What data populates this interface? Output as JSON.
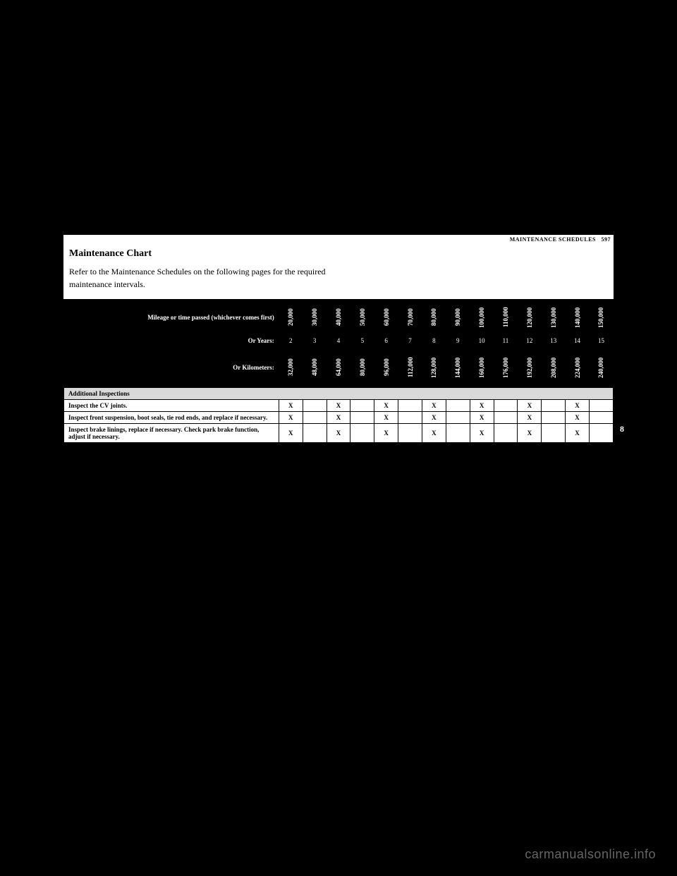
{
  "header": {
    "section": "MAINTENANCE SCHEDULES",
    "page_no": "597"
  },
  "title": "Maintenance Chart",
  "intro": "Refer to the Maintenance Schedules on the following pages for the required maintenance intervals.",
  "table": {
    "row_mileage_label": "Mileage or time passed (whichever comes first)",
    "miles": [
      "20,000",
      "30,000",
      "40,000",
      "50,000",
      "60,000",
      "70,000",
      "80,000",
      "90,000",
      "100,000",
      "110,000",
      "120,000",
      "130,000",
      "140,000",
      "150,000"
    ],
    "row_years_label": "Or Years:",
    "years": [
      "2",
      "3",
      "4",
      "5",
      "6",
      "7",
      "8",
      "9",
      "10",
      "11",
      "12",
      "13",
      "14",
      "15"
    ],
    "row_km_label": "Or Kilometers:",
    "km": [
      "32,000",
      "48,000",
      "64,000",
      "80,000",
      "96,000",
      "112,000",
      "128,000",
      "144,000",
      "160,000",
      "176,000",
      "192,000",
      "208,000",
      "224,000",
      "240,000"
    ],
    "section_label": "Additional Inspections",
    "rows": [
      {
        "label": "Inspect the CV joints.",
        "marks": [
          "X",
          "",
          "X",
          "",
          "X",
          "",
          "X",
          "",
          "X",
          "",
          "X",
          "",
          "X",
          ""
        ]
      },
      {
        "label": "Inspect front suspension, boot seals, tie rod ends, and replace if necessary.",
        "marks": [
          "X",
          "",
          "X",
          "",
          "X",
          "",
          "X",
          "",
          "X",
          "",
          "X",
          "",
          "X",
          ""
        ]
      },
      {
        "label": "Inspect brake linings, replace if necessary. Check park brake function, adjust if necessary.",
        "marks": [
          "X",
          "",
          "X",
          "",
          "X",
          "",
          "X",
          "",
          "X",
          "",
          "X",
          "",
          "X",
          ""
        ]
      }
    ]
  },
  "side_tab": "8",
  "watermark": "carmanualsonline.info"
}
